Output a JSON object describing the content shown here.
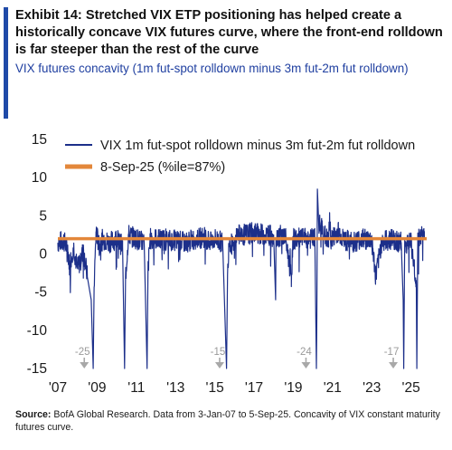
{
  "header": {
    "title": "Exhibit 14: Stretched VIX ETP positioning has helped create a historically concave VIX futures curve, where the front-end rolldown is far steeper than the rest of the curve",
    "subtitle": "VIX futures concavity (1m fut-spot rolldown minus 3m fut-2m fut rolldown)"
  },
  "footer": {
    "source_label": "Source:",
    "source_text": "BofA Global Research. Data from 3-Jan-07 to 5-Sep-25. Concavity of VIX constant maturity futures curve."
  },
  "colors": {
    "accent": "#1f4aa8",
    "series": "#1c2f8a",
    "reference": "#e3873a",
    "annotation": "#a8a8a8"
  },
  "chart_data": {
    "type": "line",
    "ylim": [
      -15,
      15
    ],
    "xlim": [
      2007,
      2025.8
    ],
    "yticks": [
      15,
      10,
      5,
      0,
      -5,
      -10,
      -15
    ],
    "ytick_labels": [
      "15",
      "10",
      "5",
      "0",
      "-5",
      "-10",
      "-15"
    ],
    "xticks": [
      2007,
      2009,
      2011,
      2013,
      2015,
      2017,
      2019,
      2021,
      2023,
      2025
    ],
    "xtick_labels": [
      "'07",
      "'09",
      "'11",
      "'13",
      "'15",
      "'17",
      "'19",
      "'21",
      "'23",
      "'25"
    ],
    "legend_position": "top",
    "series": [
      {
        "name": "VIX 1m fut-spot rolldown minus 3m fut-2m fut rolldown",
        "type": "line",
        "x": [
          2007.0,
          2007.3,
          2007.5,
          2007.6,
          2007.8,
          2008.0,
          2008.3,
          2008.5,
          2008.7,
          2008.8,
          2008.85,
          2008.95,
          2009.1,
          2009.3,
          2009.6,
          2010.0,
          2010.3,
          2010.4,
          2010.45,
          2010.6,
          2011.0,
          2011.4,
          2011.55,
          2011.6,
          2011.7,
          2012.0,
          2012.5,
          2013.0,
          2013.5,
          2014.0,
          2014.5,
          2014.8,
          2015.0,
          2015.4,
          2015.6,
          2015.65,
          2015.72,
          2016.0,
          2016.1,
          2016.5,
          2017.0,
          2017.5,
          2018.0,
          2018.1,
          2018.12,
          2018.2,
          2018.6,
          2018.9,
          2019.0,
          2019.5,
          2019.9,
          2020.1,
          2020.18,
          2020.2,
          2020.23,
          2020.3,
          2020.5,
          2020.8,
          2020.85,
          2020.9,
          2021.0,
          2021.3,
          2021.5,
          2022.0,
          2022.5,
          2023.0,
          2023.2,
          2023.5,
          2024.0,
          2024.5,
          2024.6,
          2024.63,
          2024.68,
          2024.9,
          2025.0,
          2025.27,
          2025.3,
          2025.35,
          2025.5,
          2025.68
        ],
        "values": [
          1.5,
          1.8,
          0.5,
          -1.5,
          1.0,
          -2.0,
          0.5,
          -3.0,
          -6.0,
          -25.0,
          -4.0,
          3.0,
          1.0,
          2.0,
          1.5,
          2.0,
          1.0,
          -15.0,
          -3.0,
          2.5,
          2.0,
          1.5,
          -15.0,
          -2.0,
          2.0,
          2.0,
          1.8,
          1.8,
          1.5,
          2.0,
          2.2,
          1.5,
          2.0,
          1.5,
          -15.0,
          -3.0,
          2.0,
          0.5,
          2.5,
          2.5,
          2.8,
          2.5,
          2.5,
          -6.0,
          1.5,
          2.5,
          2.2,
          -3.0,
          2.0,
          2.0,
          2.0,
          2.0,
          -24.0,
          -8.0,
          8.5,
          4.0,
          3.0,
          1.5,
          5.0,
          2.0,
          2.0,
          3.0,
          2.0,
          1.5,
          2.0,
          1.8,
          -3.0,
          1.5,
          2.0,
          1.5,
          -6.0,
          -17.0,
          1.0,
          2.0,
          1.5,
          -4.0,
          -15.0,
          2.0,
          2.5,
          2.0
        ]
      },
      {
        "name": "8-Sep-25 (%ile=87%)",
        "type": "reference",
        "y": 2.0
      }
    ],
    "annotations": [
      {
        "text": "-25",
        "x": 2008.9
      },
      {
        "text": "-15",
        "x": 2015.8
      },
      {
        "text": "-24",
        "x": 2020.2
      },
      {
        "text": "-17",
        "x": 2024.65
      }
    ]
  }
}
